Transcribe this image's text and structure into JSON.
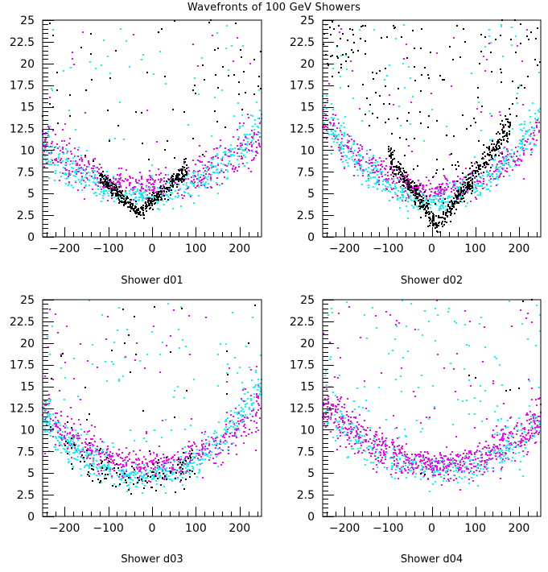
{
  "page": {
    "title": "Wavefronts of 100 GeV Showers"
  },
  "chart_data": [
    {
      "type": "scatter",
      "title": "Shower d01",
      "xlabel": "Shower d01",
      "ylabel": "",
      "xlim": [
        -250,
        250
      ],
      "ylim": [
        0,
        25
      ],
      "xticks": [
        -200,
        -100,
        0,
        100,
        200
      ],
      "xtick_labels": [
        "−200",
        "−100",
        "0",
        "100",
        "200"
      ],
      "yticks": [
        0,
        2.5,
        5,
        7.5,
        10,
        12.5,
        15,
        17.5,
        20,
        22.5,
        25
      ],
      "ytick_labels": [
        "0",
        "2.5",
        "5",
        "7.5",
        "10",
        "12.5",
        "15",
        "17.5",
        "20",
        "22.5",
        "25"
      ],
      "grid": false,
      "data_note": "Points are approximate: parabolic/V-shaped bands y = base + k*|x-x0|^p plus noise, estimated visually from the plot",
      "series": [
        {
          "name": "magenta",
          "color": "#ff00ff",
          "n": 520,
          "x0": -10,
          "base": 5.8,
          "k": 9e-05,
          "p": 2,
          "lin": 0.0,
          "spread": 0.7,
          "outliers": 25,
          "seed": 11
        },
        {
          "name": "cyan",
          "color": "#00ffff",
          "n": 420,
          "x0": -20,
          "base": 4.8,
          "k": 0.00011,
          "p": 2,
          "lin": 0.0,
          "spread": 0.6,
          "outliers": 60,
          "seed": 12
        },
        {
          "name": "black",
          "color": "#000000",
          "n": 380,
          "x0": -30,
          "base": 2.8,
          "k": 0.045,
          "p": 1,
          "lin": 0.0,
          "spread": 0.35,
          "xrange": [
            -120,
            80
          ],
          "outliers": 70,
          "seed": 13
        }
      ]
    },
    {
      "type": "scatter",
      "title": "Shower d02",
      "xlabel": "Shower d02",
      "ylabel": "",
      "xlim": [
        -250,
        250
      ],
      "ylim": [
        0,
        25
      ],
      "xticks": [
        -200,
        -100,
        0,
        100,
        200
      ],
      "xtick_labels": [
        "−200",
        "−100",
        "0",
        "100",
        "200"
      ],
      "yticks": [
        0,
        2.5,
        5,
        7.5,
        10,
        12.5,
        15,
        17.5,
        20,
        22.5,
        25
      ],
      "ytick_labels": [
        "0",
        "2.5",
        "5",
        "7.5",
        "10",
        "12.5",
        "15",
        "17.5",
        "20",
        "22.5",
        "25"
      ],
      "grid": false,
      "data_note": "Points are approximate: parabolic/V-shaped bands y = base + k*|x-x0|^p plus noise, estimated visually from the plot",
      "series": [
        {
          "name": "magenta",
          "color": "#ff00ff",
          "n": 480,
          "x0": 10,
          "base": 5.5,
          "k": 0.00012,
          "p": 2,
          "lin": 0.0,
          "spread": 0.6,
          "outliers": 40,
          "seed": 21
        },
        {
          "name": "cyan",
          "color": "#00ffff",
          "n": 480,
          "x0": 0,
          "base": 4.2,
          "k": 0.00016,
          "p": 2,
          "lin": 0.0,
          "spread": 0.6,
          "outliers": 60,
          "seed": 22
        },
        {
          "name": "black",
          "color": "#000000",
          "n": 520,
          "x0": 15,
          "base": 1.3,
          "k": 0.07,
          "p": 1,
          "lin": 0.0,
          "spread": 0.5,
          "xrange": [
            -100,
            180
          ],
          "outliers": 180,
          "seed": 23
        }
      ]
    },
    {
      "type": "scatter",
      "title": "Shower d03",
      "xlabel": "Shower d03",
      "ylabel": "",
      "xlim": [
        -250,
        250
      ],
      "ylim": [
        0,
        25
      ],
      "xticks": [
        -200,
        -100,
        0,
        100,
        200
      ],
      "xtick_labels": [
        "−200",
        "−100",
        "0",
        "100",
        "200"
      ],
      "yticks": [
        0,
        2.5,
        5,
        7.5,
        10,
        12.5,
        15,
        17.5,
        20,
        22.5,
        25
      ],
      "ytick_labels": [
        "0",
        "2.5",
        "5",
        "7.5",
        "10",
        "12.5",
        "15",
        "17.5",
        "20",
        "22.5",
        "25"
      ],
      "grid": false,
      "data_note": "Points are approximate: parabolic/V-shaped bands y = base + k*|x-x0|^p plus noise, estimated visually from the plot",
      "series": [
        {
          "name": "magenta",
          "color": "#ff00ff",
          "n": 560,
          "x0": -5,
          "base": 5.7,
          "k": 0.00011,
          "p": 2,
          "lin": 0.0,
          "spread": 0.7,
          "outliers": 50,
          "seed": 31
        },
        {
          "name": "cyan",
          "color": "#00ffff",
          "n": 520,
          "x0": -25,
          "base": 4.4,
          "k": 0.00014,
          "p": 2,
          "lin": 0.0,
          "spread": 0.6,
          "outliers": 80,
          "seed": 32
        },
        {
          "name": "black",
          "color": "#000000",
          "n": 110,
          "x0": -20,
          "base": 4.3,
          "k": 0.00012,
          "p": 2,
          "lin": 0.0,
          "spread": 0.8,
          "xrange": [
            -200,
            100
          ],
          "outliers": 30,
          "seed": 33
        }
      ]
    },
    {
      "type": "scatter",
      "title": "Shower d04",
      "xlabel": "Shower d04",
      "ylabel": "",
      "xlim": [
        -250,
        250
      ],
      "ylim": [
        0,
        25
      ],
      "xticks": [
        -200,
        -100,
        0,
        100,
        200
      ],
      "xtick_labels": [
        "−200",
        "−100",
        "0",
        "100",
        "200"
      ],
      "yticks": [
        0,
        2.5,
        5,
        7.5,
        10,
        12.5,
        15,
        17.5,
        20,
        22.5,
        25
      ],
      "ytick_labels": [
        "0",
        "2.5",
        "5",
        "7.5",
        "10",
        "12.5",
        "15",
        "17.5",
        "20",
        "22.5",
        "25"
      ],
      "grid": false,
      "data_note": "Points are approximate: parabolic/V-shaped bands y = base + k*|x-x0|^p plus noise, estimated visually from the plot",
      "series": [
        {
          "name": "magenta",
          "color": "#ff00ff",
          "n": 760,
          "x0": 20,
          "base": 5.8,
          "k": 0.0001,
          "p": 2,
          "lin": 0.0,
          "spread": 0.75,
          "outliers": 60,
          "seed": 41
        },
        {
          "name": "cyan",
          "color": "#00ffff",
          "n": 300,
          "x0": 20,
          "base": 5.2,
          "k": 0.0001,
          "p": 2,
          "lin": 0.0,
          "spread": 0.7,
          "outliers": 110,
          "seed": 42
        },
        {
          "name": "black",
          "color": "#000000",
          "n": 0,
          "x0": 0,
          "base": 0,
          "k": 0,
          "p": 2,
          "lin": 0.0,
          "spread": 0,
          "outliers": 0,
          "seed": 43,
          "fixed_points": [
            [
              -25,
              4.9
            ],
            [
              -15,
              4.8
            ],
            [
              170,
              14.5
            ],
            [
              180,
              14.6
            ],
            [
              200,
              14.8
            ],
            [
              100,
              16
            ],
            [
              85,
              16.3
            ],
            [
              210,
              24.8
            ],
            [
              230,
              25
            ]
          ]
        }
      ]
    }
  ]
}
